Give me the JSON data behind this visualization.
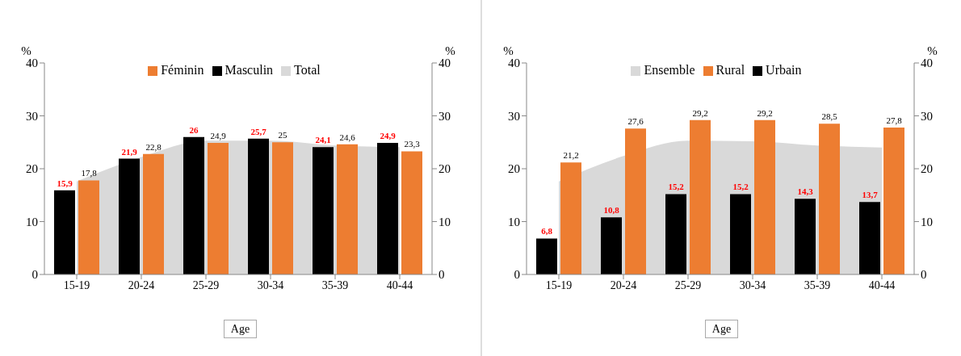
{
  "chart_data": [
    {
      "type": "bar",
      "xlabel": "Age",
      "ylabel": "%",
      "y2label": "%",
      "categories": [
        "15-19",
        "20-24",
        "25-29",
        "30-34",
        "35-39",
        "40-44"
      ],
      "ylim": [
        0,
        40
      ],
      "yticks": [
        0,
        10,
        20,
        30,
        40
      ],
      "y2lim": [
        0,
        40
      ],
      "y2ticks": [
        0,
        10,
        20,
        30,
        40
      ],
      "legend": "top",
      "grid": false,
      "series": [
        {
          "name": "Total",
          "type": "area",
          "color": "#d9d9d9",
          "values": [
            17.6,
            22.2,
            25.3,
            25.3,
            24.4,
            24.1
          ]
        },
        {
          "name": "Masculin",
          "color": "#000000",
          "values": [
            15.9,
            21.9,
            26,
            25.7,
            24.1,
            24.9
          ],
          "value_labels": [
            "15,9",
            "21,9",
            "26",
            "25,7",
            "24,1",
            "24,9"
          ]
        },
        {
          "name": "Féminin",
          "color": "#ed7d31",
          "values": [
            17.8,
            22.8,
            24.9,
            25,
            24.6,
            23.3
          ],
          "value_labels": [
            "17,8",
            "22,8",
            "24,9",
            "25",
            "24,6",
            "23,3"
          ]
        }
      ]
    },
    {
      "type": "bar",
      "xlabel": "Age",
      "ylabel": "%",
      "y2label": "%",
      "categories": [
        "15-19",
        "20-24",
        "25-29",
        "30-34",
        "35-39",
        "40-44"
      ],
      "ylim": [
        0,
        40
      ],
      "yticks": [
        0,
        10,
        20,
        30,
        40
      ],
      "y2lim": [
        0,
        40
      ],
      "y2ticks": [
        0,
        10,
        20,
        30,
        40
      ],
      "legend": "top",
      "grid": false,
      "series": [
        {
          "name": "Ensemble",
          "type": "area",
          "color": "#d9d9d9",
          "values": [
            17.6,
            22.4,
            25.3,
            25.2,
            24.4,
            24.0
          ]
        },
        {
          "name": "Urbain",
          "color": "#000000",
          "values": [
            6.8,
            10.8,
            15.2,
            15.2,
            14.3,
            13.7
          ],
          "value_labels": [
            "6,8",
            "10,8",
            "15,2",
            "15,2",
            "14,3",
            "13,7"
          ]
        },
        {
          "name": "Rural",
          "color": "#ed7d31",
          "values": [
            21.2,
            27.6,
            29.2,
            29.2,
            28.5,
            27.8
          ],
          "value_labels": [
            "21,2",
            "27,6",
            "29,2",
            "29,2",
            "28,5",
            "27,8"
          ]
        }
      ]
    }
  ]
}
